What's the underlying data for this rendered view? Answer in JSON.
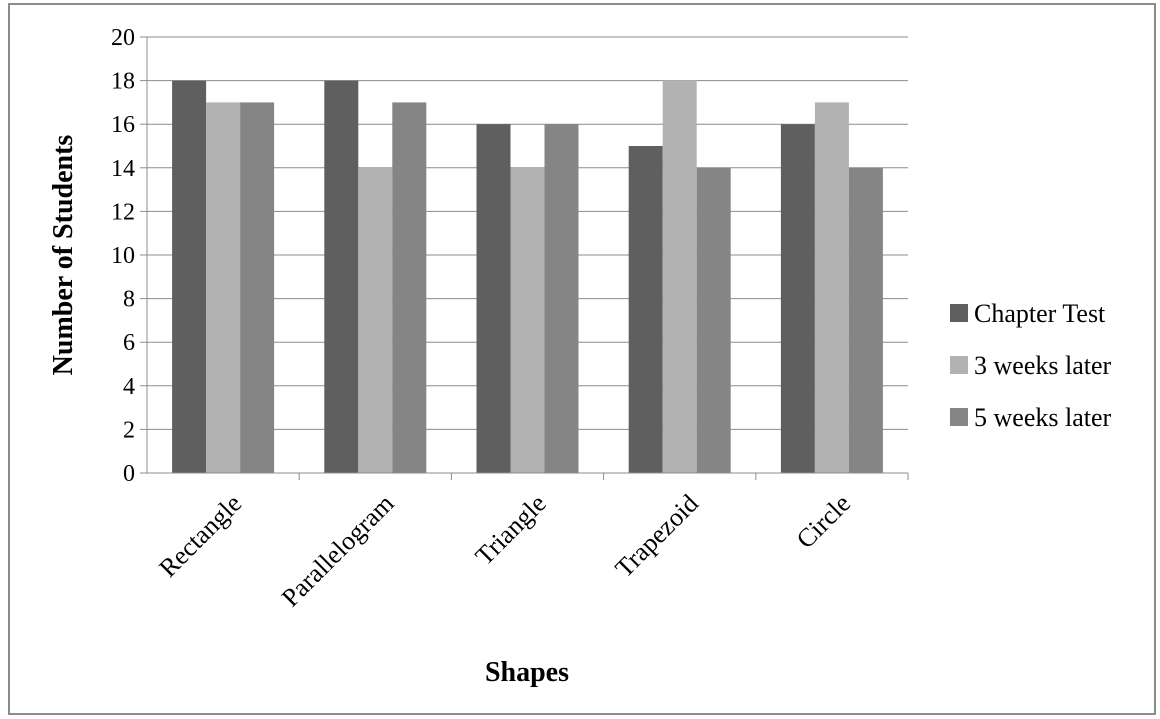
{
  "chart_data": {
    "type": "bar",
    "title": "",
    "xlabel": "Shapes",
    "ylabel": "Number of Students",
    "ylim": [
      0,
      20
    ],
    "yticks": [
      0,
      2,
      4,
      6,
      8,
      10,
      12,
      14,
      16,
      18,
      20
    ],
    "grid": true,
    "legend_position": "right",
    "categories": [
      "Rectangle",
      "Parallelogram",
      "Triangle",
      "Trapezoid",
      "Circle"
    ],
    "series": [
      {
        "name": "Chapter Test",
        "color": "#5f5f5f",
        "values": [
          18,
          18,
          16,
          15,
          16
        ]
      },
      {
        "name": "3 weeks later",
        "color": "#b2b2b2",
        "values": [
          17,
          14,
          14,
          18,
          17
        ]
      },
      {
        "name": "5 weeks later",
        "color": "#858585",
        "values": [
          17,
          17,
          16,
          14,
          14
        ]
      }
    ]
  }
}
